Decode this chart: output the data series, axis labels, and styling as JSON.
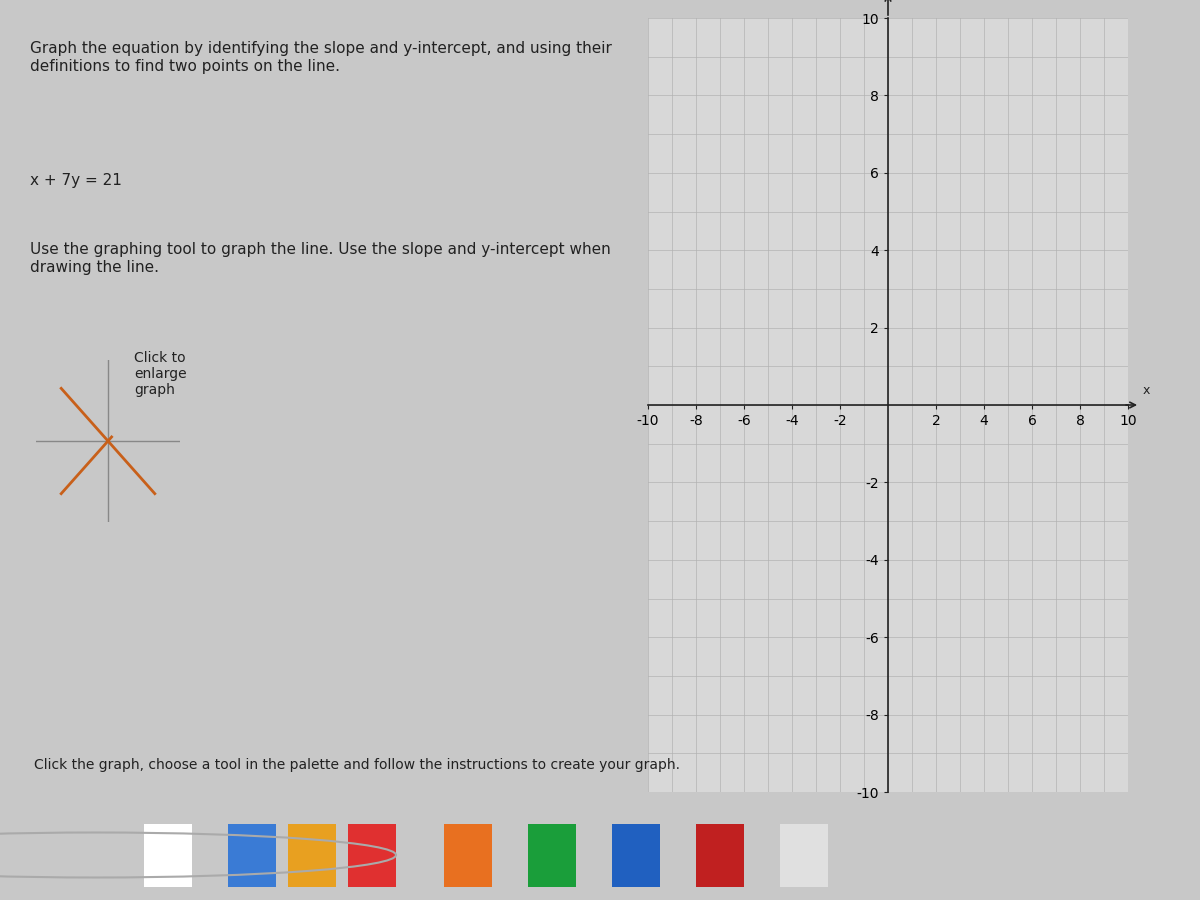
{
  "title_text": "Graph the equation by identifying the slope and y-intercept, and using their\ndefinitions to find two points on the line.",
  "equation": "x + 7y = 21",
  "instruction": "Use the graphing tool to graph the line. Use the slope and y-intercept when\ndrawing the line.",
  "bottom_text": "Click the graph, choose a tool in the palette and follow the instructions to create your graph.",
  "graph_xlim": [
    -10,
    10
  ],
  "graph_ylim": [
    -10,
    10
  ],
  "graph_xticks": [
    -10,
    -8,
    -6,
    -4,
    -2,
    2,
    4,
    6,
    8,
    10
  ],
  "graph_yticks": [
    -10,
    -8,
    -6,
    -4,
    -2,
    2,
    4,
    6,
    8,
    10
  ],
  "bg_color": "#c8c8c8",
  "left_panel_color": "#d0d0d0",
  "graph_bg_color": "#d8d8d8",
  "grid_color": "#b0b0b0",
  "axis_color": "#222222",
  "text_color": "#222222",
  "thumbnail_bg": "#c0c0c0",
  "thumbnail_cross_color": "#c8601a",
  "thumbnail_line_color": "#888888",
  "taskbar_color": "#1a1a1a"
}
